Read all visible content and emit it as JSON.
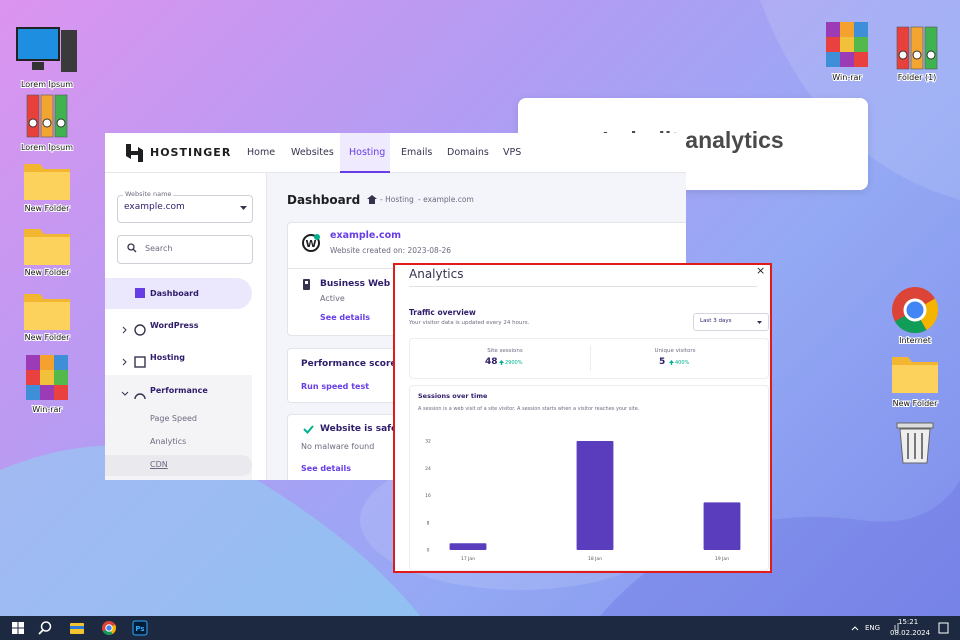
{
  "desktop": {
    "icons": [
      "Lorem Ipsum",
      "Lorem Ipsum",
      "New Folder",
      "New Folder",
      "New Folder",
      "Win-rar",
      "Win-rar",
      "Folder (1)",
      "Internet",
      "New Folder"
    ]
  },
  "callout": "In-built analytics",
  "hostinger": {
    "brand": "HOSTINGER",
    "nav": [
      "Home",
      "Websites",
      "Hosting",
      "Emails",
      "Domains",
      "VPS"
    ],
    "sidebar": {
      "website_label": "Website name",
      "website": "example.com",
      "search": "Search",
      "menu": [
        "Dashboard",
        "WordPress",
        "Hosting",
        "Performance",
        "Page Speed",
        "Analytics",
        "CDN"
      ]
    },
    "main": {
      "title": "Dashboard",
      "breadcrumb": [
        "- Hosting",
        "- example.com"
      ],
      "site": "example.com",
      "created": "Website created on: 2023-08-26",
      "plan": "Business Web H",
      "status": "Active",
      "plan_link": "See details",
      "performance": "Performance score",
      "speed_link": "Run speed test",
      "security": "Website is safe",
      "malware": "No malware found",
      "security_link": "See details"
    }
  },
  "analytics": {
    "title": "Analytics",
    "close": "×",
    "section": "Traffic overview",
    "note": "Your visitor data is updated every 24 hours.",
    "range": "Last 3 days",
    "stats": [
      {
        "label": "Site sessions",
        "value": 48,
        "change": "2900%"
      },
      {
        "label": "Unique visitors",
        "value": 5,
        "change": "400%"
      }
    ]
  },
  "chart_data": {
    "type": "bar",
    "title": "Sessions over time",
    "subtitle": "A session is a web visit of a site visitor. A session starts when a visitor reaches your site.",
    "categories": [
      "17 Jan",
      "18 Jan",
      "19 Jan"
    ],
    "values": [
      2,
      32,
      14
    ],
    "color": "#5a3dbd",
    "ylim": [
      0,
      32
    ],
    "yticks": [
      0,
      8,
      16,
      24,
      32
    ]
  },
  "taskbar": {
    "language": "ENG",
    "time": "15:21",
    "date": "08.02.2024"
  }
}
